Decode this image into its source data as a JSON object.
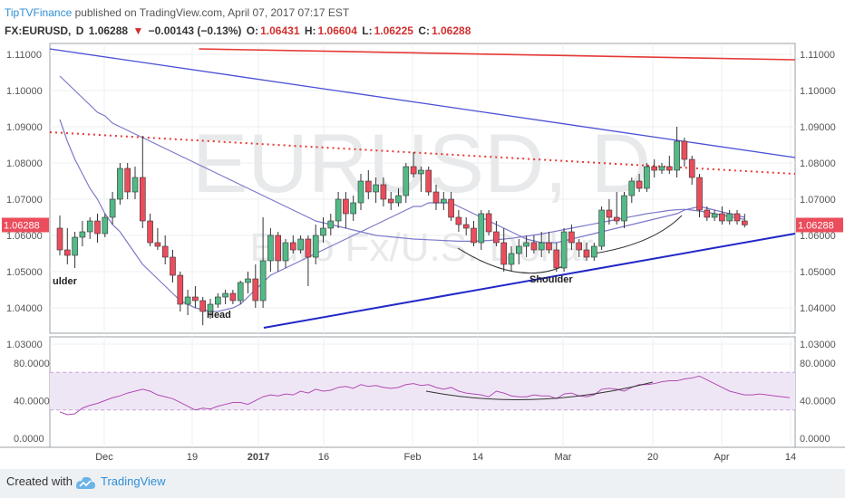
{
  "header": {
    "brand": "TipTVFinance",
    "published": " published on TradingView.com, April 07, 2017 07:17 EST",
    "symbol": "FX:EURUSD,",
    "timeframe": "D",
    "last": "1.06288",
    "change": "−0.00143 (−0.13%)",
    "open_label": "O:",
    "open": "1.06431",
    "high_label": "H:",
    "high": "1.06604",
    "low_label": "L:",
    "low": "1.06225",
    "close_label": "C:",
    "close": "1.06288"
  },
  "footer": {
    "created_with": "Created with",
    "brand": "TradingView"
  },
  "chart_data": {
    "type": "candlestick",
    "watermark": {
      "main": "EURUSD, D",
      "sub": "Euro Fx/U.S. Dollar"
    },
    "price_axis": {
      "ylim": [
        1.033,
        1.113
      ],
      "ticks": [
        "1.11000",
        "1.10000",
        "1.09000",
        "1.08000",
        "1.07000",
        "1.06000",
        "1.05000",
        "1.04000",
        "1.03000"
      ]
    },
    "rsi_axis": {
      "ylim": [
        0,
        100
      ],
      "ticks": [
        "80.0000",
        "40.0000",
        "0.0000"
      ],
      "band": [
        30,
        70
      ]
    },
    "x_ticks": [
      "Dec",
      "19",
      "2017",
      "16",
      "Feb",
      "14",
      "Mar",
      "20",
      "Apr",
      "14"
    ],
    "last_price_label": "1.06288",
    "annotations": [
      "ulder",
      "Head",
      "Shoulder"
    ],
    "candles": [
      {
        "o": 1.062,
        "h": 1.0655,
        "l": 1.0545,
        "c": 1.056
      },
      {
        "o": 1.056,
        "h": 1.062,
        "l": 1.052,
        "c": 1.0545
      },
      {
        "o": 1.0545,
        "h": 1.061,
        "l": 1.051,
        "c": 1.0595
      },
      {
        "o": 1.0595,
        "h": 1.064,
        "l": 1.057,
        "c": 1.061
      },
      {
        "o": 1.061,
        "h": 1.065,
        "l": 1.059,
        "c": 1.064
      },
      {
        "o": 1.064,
        "h": 1.066,
        "l": 1.058,
        "c": 1.0605
      },
      {
        "o": 1.0605,
        "h": 1.066,
        "l": 1.0595,
        "c": 1.065
      },
      {
        "o": 1.065,
        "h": 1.072,
        "l": 1.063,
        "c": 1.07
      },
      {
        "o": 1.07,
        "h": 1.08,
        "l": 1.0685,
        "c": 1.0785
      },
      {
        "o": 1.0785,
        "h": 1.08,
        "l": 1.07,
        "c": 1.072
      },
      {
        "o": 1.072,
        "h": 1.079,
        "l": 1.07,
        "c": 1.076
      },
      {
        "o": 1.076,
        "h": 1.0875,
        "l": 1.062,
        "c": 1.064
      },
      {
        "o": 1.064,
        "h": 1.066,
        "l": 1.057,
        "c": 1.058
      },
      {
        "o": 1.058,
        "h": 1.062,
        "l": 1.056,
        "c": 1.057
      },
      {
        "o": 1.057,
        "h": 1.06,
        "l": 1.052,
        "c": 1.054
      },
      {
        "o": 1.054,
        "h": 1.056,
        "l": 1.047,
        "c": 1.049
      },
      {
        "o": 1.049,
        "h": 1.05,
        "l": 1.039,
        "c": 1.041
      },
      {
        "o": 1.041,
        "h": 1.045,
        "l": 1.038,
        "c": 1.043
      },
      {
        "o": 1.043,
        "h": 1.046,
        "l": 1.04,
        "c": 1.042
      },
      {
        "o": 1.042,
        "h": 1.043,
        "l": 1.0352,
        "c": 1.039
      },
      {
        "o": 1.039,
        "h": 1.0425,
        "l": 1.037,
        "c": 1.041
      },
      {
        "o": 1.041,
        "h": 1.044,
        "l": 1.04,
        "c": 1.043
      },
      {
        "o": 1.043,
        "h": 1.045,
        "l": 1.041,
        "c": 1.044
      },
      {
        "o": 1.044,
        "h": 1.045,
        "l": 1.041,
        "c": 1.042
      },
      {
        "o": 1.042,
        "h": 1.0475,
        "l": 1.041,
        "c": 1.047
      },
      {
        "o": 1.047,
        "h": 1.05,
        "l": 1.044,
        "c": 1.048
      },
      {
        "o": 1.048,
        "h": 1.052,
        "l": 1.04,
        "c": 1.042
      },
      {
        "o": 1.042,
        "h": 1.065,
        "l": 1.04,
        "c": 1.053
      },
      {
        "o": 1.053,
        "h": 1.062,
        "l": 1.05,
        "c": 1.06
      },
      {
        "o": 1.06,
        "h": 1.061,
        "l": 1.05,
        "c": 1.053
      },
      {
        "o": 1.053,
        "h": 1.059,
        "l": 1.051,
        "c": 1.058
      },
      {
        "o": 1.058,
        "h": 1.06,
        "l": 1.055,
        "c": 1.056
      },
      {
        "o": 1.056,
        "h": 1.06,
        "l": 1.055,
        "c": 1.059
      },
      {
        "o": 1.059,
        "h": 1.06,
        "l": 1.046,
        "c": 1.054
      },
      {
        "o": 1.054,
        "h": 1.063,
        "l": 1.052,
        "c": 1.06
      },
      {
        "o": 1.06,
        "h": 1.065,
        "l": 1.058,
        "c": 1.062
      },
      {
        "o": 1.062,
        "h": 1.066,
        "l": 1.06,
        "c": 1.064
      },
      {
        "o": 1.064,
        "h": 1.072,
        "l": 1.062,
        "c": 1.07
      },
      {
        "o": 1.07,
        "h": 1.072,
        "l": 1.062,
        "c": 1.066
      },
      {
        "o": 1.066,
        "h": 1.071,
        "l": 1.064,
        "c": 1.069
      },
      {
        "o": 1.069,
        "h": 1.077,
        "l": 1.067,
        "c": 1.075
      },
      {
        "o": 1.075,
        "h": 1.078,
        "l": 1.07,
        "c": 1.072
      },
      {
        "o": 1.072,
        "h": 1.076,
        "l": 1.069,
        "c": 1.074
      },
      {
        "o": 1.074,
        "h": 1.076,
        "l": 1.068,
        "c": 1.07
      },
      {
        "o": 1.07,
        "h": 1.072,
        "l": 1.067,
        "c": 1.069
      },
      {
        "o": 1.069,
        "h": 1.073,
        "l": 1.068,
        "c": 1.071
      },
      {
        "o": 1.071,
        "h": 1.08,
        "l": 1.069,
        "c": 1.079
      },
      {
        "o": 1.079,
        "h": 1.083,
        "l": 1.076,
        "c": 1.077
      },
      {
        "o": 1.077,
        "h": 1.079,
        "l": 1.072,
        "c": 1.078
      },
      {
        "o": 1.078,
        "h": 1.079,
        "l": 1.071,
        "c": 1.072
      },
      {
        "o": 1.072,
        "h": 1.074,
        "l": 1.067,
        "c": 1.069
      },
      {
        "o": 1.069,
        "h": 1.072,
        "l": 1.067,
        "c": 1.07
      },
      {
        "o": 1.07,
        "h": 1.072,
        "l": 1.064,
        "c": 1.065
      },
      {
        "o": 1.065,
        "h": 1.067,
        "l": 1.061,
        "c": 1.063
      },
      {
        "o": 1.063,
        "h": 1.065,
        "l": 1.06,
        "c": 1.062
      },
      {
        "o": 1.062,
        "h": 1.064,
        "l": 1.057,
        "c": 1.058
      },
      {
        "o": 1.058,
        "h": 1.067,
        "l": 1.056,
        "c": 1.066
      },
      {
        "o": 1.066,
        "h": 1.067,
        "l": 1.06,
        "c": 1.061
      },
      {
        "o": 1.061,
        "h": 1.064,
        "l": 1.057,
        "c": 1.058
      },
      {
        "o": 1.058,
        "h": 1.062,
        "l": 1.05,
        "c": 1.052
      },
      {
        "o": 1.052,
        "h": 1.057,
        "l": 1.05,
        "c": 1.055
      },
      {
        "o": 1.055,
        "h": 1.059,
        "l": 1.052,
        "c": 1.057
      },
      {
        "o": 1.057,
        "h": 1.06,
        "l": 1.054,
        "c": 1.058
      },
      {
        "o": 1.058,
        "h": 1.06,
        "l": 1.055,
        "c": 1.056
      },
      {
        "o": 1.056,
        "h": 1.061,
        "l": 1.054,
        "c": 1.058
      },
      {
        "o": 1.058,
        "h": 1.061,
        "l": 1.055,
        "c": 1.056
      },
      {
        "o": 1.056,
        "h": 1.058,
        "l": 1.05,
        "c": 1.051
      },
      {
        "o": 1.051,
        "h": 1.062,
        "l": 1.05,
        "c": 1.061
      },
      {
        "o": 1.061,
        "h": 1.063,
        "l": 1.056,
        "c": 1.058
      },
      {
        "o": 1.058,
        "h": 1.059,
        "l": 1.054,
        "c": 1.056
      },
      {
        "o": 1.056,
        "h": 1.058,
        "l": 1.053,
        "c": 1.054
      },
      {
        "o": 1.054,
        "h": 1.058,
        "l": 1.053,
        "c": 1.057
      },
      {
        "o": 1.057,
        "h": 1.068,
        "l": 1.056,
        "c": 1.067
      },
      {
        "o": 1.067,
        "h": 1.07,
        "l": 1.063,
        "c": 1.065
      },
      {
        "o": 1.065,
        "h": 1.072,
        "l": 1.063,
        "c": 1.064
      },
      {
        "o": 1.064,
        "h": 1.072,
        "l": 1.062,
        "c": 1.071
      },
      {
        "o": 1.071,
        "h": 1.076,
        "l": 1.069,
        "c": 1.075
      },
      {
        "o": 1.075,
        "h": 1.077,
        "l": 1.072,
        "c": 1.073
      },
      {
        "o": 1.073,
        "h": 1.08,
        "l": 1.072,
        "c": 1.079
      },
      {
        "o": 1.079,
        "h": 1.081,
        "l": 1.076,
        "c": 1.078
      },
      {
        "o": 1.078,
        "h": 1.08,
        "l": 1.077,
        "c": 1.079
      },
      {
        "o": 1.079,
        "h": 1.082,
        "l": 1.077,
        "c": 1.078
      },
      {
        "o": 1.078,
        "h": 1.09,
        "l": 1.076,
        "c": 1.086
      },
      {
        "o": 1.086,
        "h": 1.087,
        "l": 1.079,
        "c": 1.081
      },
      {
        "o": 1.081,
        "h": 1.082,
        "l": 1.074,
        "c": 1.076
      },
      {
        "o": 1.076,
        "h": 1.077,
        "l": 1.065,
        "c": 1.067
      },
      {
        "o": 1.067,
        "h": 1.068,
        "l": 1.064,
        "c": 1.065
      },
      {
        "o": 1.065,
        "h": 1.067,
        "l": 1.064,
        "c": 1.066
      },
      {
        "o": 1.066,
        "h": 1.068,
        "l": 1.063,
        "c": 1.064
      },
      {
        "o": 1.064,
        "h": 1.067,
        "l": 1.063,
        "c": 1.066
      },
      {
        "o": 1.066,
        "h": 1.067,
        "l": 1.063,
        "c": 1.064
      },
      {
        "o": 1.064,
        "h": 1.066,
        "l": 1.0622,
        "c": 1.0629
      }
    ],
    "series": [
      {
        "name": "",
        "kind": "ma_fast",
        "values": [
          1.092,
          1.086,
          1.081,
          1.077,
          1.073,
          1.07,
          1.066,
          1.063,
          1.061,
          1.058,
          1.055,
          1.052,
          1.05,
          1.048,
          1.046,
          1.044,
          1.042,
          1.041,
          1.04,
          1.0395,
          1.039,
          1.039,
          1.0395,
          1.04,
          1.041,
          1.043,
          1.045,
          1.047,
          1.049,
          1.05,
          1.051,
          1.052,
          1.053,
          1.054,
          1.055,
          1.056,
          1.057,
          1.058,
          1.059,
          1.06,
          1.061,
          1.062,
          1.063,
          1.064,
          1.065,
          1.066,
          1.067,
          1.068,
          1.068,
          1.069,
          1.069,
          1.069,
          1.069,
          1.068,
          1.067,
          1.066,
          1.065,
          1.064,
          1.063,
          1.062,
          1.061,
          1.06,
          1.059,
          1.0585,
          1.058,
          1.058,
          1.058,
          1.0585,
          1.059,
          1.0595,
          1.06,
          1.0605,
          1.061,
          1.0615,
          1.062,
          1.0625,
          1.063,
          1.0635,
          1.064,
          1.0645,
          1.065,
          1.0655,
          1.066,
          1.067,
          1.0675,
          1.068,
          1.0675,
          1.067,
          1.0665,
          1.066,
          1.0655,
          1.065
        ]
      },
      {
        "name": "",
        "kind": "ma_slow",
        "values": [
          1.104,
          1.102,
          1.1,
          1.098,
          1.096,
          1.094,
          1.093,
          1.091,
          1.09,
          1.089,
          1.088,
          1.087,
          1.086,
          1.085,
          1.084,
          1.083,
          1.082,
          1.081,
          1.08,
          1.079,
          1.078,
          1.077,
          1.076,
          1.075,
          1.074,
          1.073,
          1.072,
          1.071,
          1.07,
          1.069,
          1.068,
          1.067,
          1.066,
          1.065,
          1.064,
          1.0635,
          1.063,
          1.0625,
          1.062,
          1.0615,
          1.061,
          1.0605,
          1.06,
          1.0598,
          1.0596,
          1.0594,
          1.0592,
          1.059,
          1.0589,
          1.0588,
          1.0587,
          1.0586,
          1.0585,
          1.0584,
          1.0584,
          1.0584,
          1.0585,
          1.0586,
          1.0588,
          1.059,
          1.0592,
          1.0595,
          1.0598,
          1.0601,
          1.0604,
          1.0608,
          1.0612,
          1.0616,
          1.062,
          1.0624,
          1.0628,
          1.0632,
          1.0636,
          1.064,
          1.0644,
          1.0648,
          1.0652,
          1.0656,
          1.066,
          1.0663,
          1.0666,
          1.0669,
          1.0671,
          1.0672,
          1.067,
          1.0667,
          1.0664,
          1.066,
          1.0656,
          1.0652,
          1.0648,
          1.0644
        ]
      },
      {
        "name": "",
        "kind": "rsi",
        "values": [
          28,
          25,
          26,
          32,
          35,
          37,
          40,
          43,
          45,
          48,
          50,
          52,
          50,
          46,
          44,
          42,
          38,
          34,
          30,
          32,
          31,
          34,
          36,
          38,
          38,
          36,
          40,
          44,
          46,
          45,
          47,
          46,
          50,
          48,
          52,
          50,
          51,
          54,
          55,
          53,
          57,
          55,
          56,
          54,
          53,
          54,
          57,
          58,
          56,
          57,
          54,
          52,
          54,
          50,
          48,
          47,
          46,
          44,
          50,
          48,
          45,
          44,
          44,
          46,
          45,
          45,
          42,
          47,
          48,
          45,
          44,
          46,
          52,
          53,
          52,
          50,
          54,
          57,
          57,
          58,
          60,
          61,
          61,
          63,
          64,
          66,
          62,
          58,
          54,
          50,
          48,
          46,
          46,
          47,
          46,
          45,
          44,
          43
        ]
      }
    ],
    "trendlines": [
      {
        "kind": "resistance_solid_blue",
        "from": [
          0,
          1.1115
        ],
        "to": [
          1,
          1.0815
        ]
      },
      {
        "kind": "neckline_dotted_red",
        "from": [
          0,
          1.0885
        ],
        "to": [
          1,
          1.077
        ]
      },
      {
        "kind": "upper_red",
        "from": [
          0.2,
          1.1115
        ],
        "to": [
          1,
          1.1085
        ]
      },
      {
        "kind": "support_solid_blue",
        "from": [
          0.287,
          1.0345
        ],
        "to": [
          1,
          1.0605
        ]
      }
    ]
  }
}
